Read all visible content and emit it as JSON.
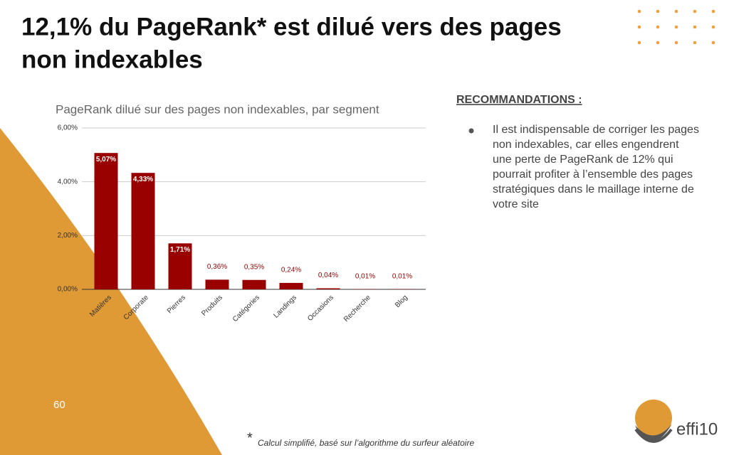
{
  "slide": {
    "title_lines": [
      "12,1% du PageRank* est dilué vers des pages",
      "non indexables"
    ],
    "recommendations_heading": "RECOMMANDATIONS :",
    "recommendation_lines": [
      "Il est indispensable de corriger les pages",
      "non indexables, car elles engendrent",
      "une perte de PageRank de 12% qui",
      "pourrait profiter à l’ensemble des pages",
      "stratégiques dans le maillage interne de",
      "votre site"
    ],
    "page_number": "60",
    "footnote_mark": "*",
    "footnote": "Calcul simplifié, basé sur l’algorithme du surfeur aléatoire",
    "logo": "effi10"
  },
  "chart_data": {
    "type": "bar",
    "title": "PageRank dilué sur des pages non indexables, par segment",
    "categories": [
      "Matières",
      "Corporate",
      "Pierres",
      "Produits",
      "Catégories",
      "Landings",
      "Occasions",
      "Recherche",
      "Blog"
    ],
    "values": [
      5.07,
      4.33,
      1.71,
      0.36,
      0.35,
      0.24,
      0.04,
      0.01,
      0.01
    ],
    "value_labels": [
      "5,07%",
      "4,33%",
      "1,71%",
      "0,36%",
      "0,35%",
      "0,24%",
      "0,04%",
      "0,01%",
      "0,01%"
    ],
    "color": "#990000",
    "ylim": [
      0,
      6
    ],
    "yticks": [
      {
        "value": 0,
        "label": "0,00%"
      },
      {
        "value": 2,
        "label": "2,00%"
      },
      {
        "value": 4,
        "label": "4,00%"
      },
      {
        "value": 6,
        "label": "6,00%"
      }
    ],
    "grid": true
  }
}
